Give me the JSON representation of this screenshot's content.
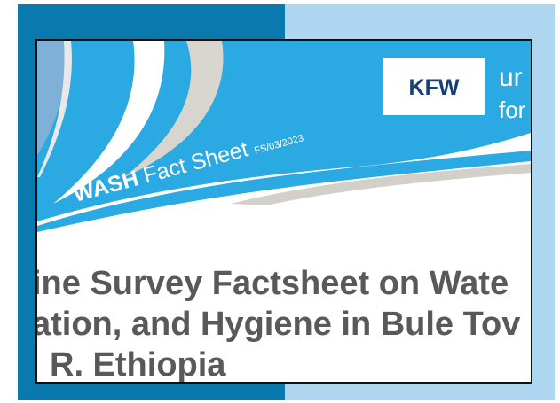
{
  "banner": {
    "program": "WASH",
    "doc_type": "Fact Sheet",
    "code": "FS/03/2023"
  },
  "logo": {
    "name": "KFW",
    "partner_lines": [
      "ur",
      "for"
    ]
  },
  "title": {
    "lines": [
      "ine Survey Factsheet on Wate",
      "ation, and Hygiene in Bule Tov",
      "R. Ethiopia"
    ]
  }
}
